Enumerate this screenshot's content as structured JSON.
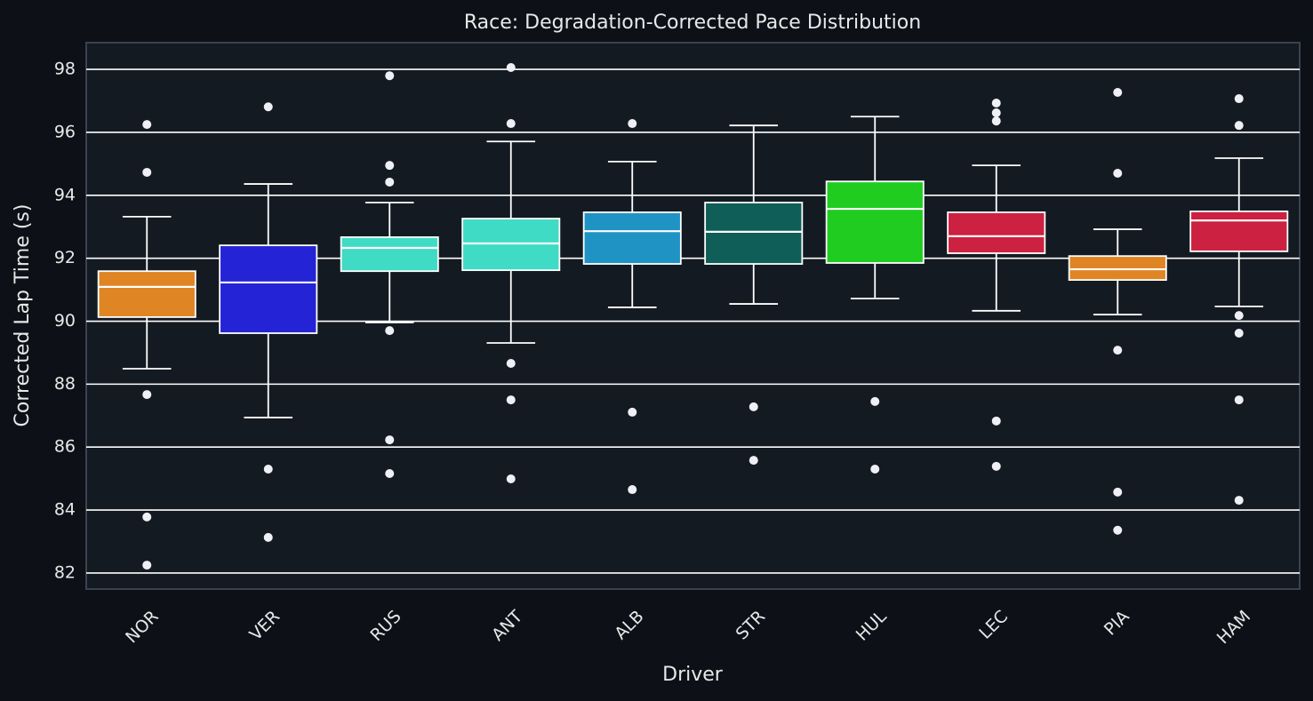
{
  "chart_data": {
    "type": "box",
    "title": "Race: Degradation-Corrected Pace Distribution",
    "x_label": "Driver",
    "y_label": "Corrected Lap Time (s)",
    "ylim": [
      81.49,
      98.85
    ],
    "yticks": [
      82,
      84,
      86,
      88,
      90,
      92,
      94,
      96,
      98
    ],
    "grid": true,
    "boxes": [
      {
        "name": "NOR",
        "color": "#e08524",
        "low": 88.49,
        "q1": 90.13,
        "median": 91.09,
        "q3": 91.59,
        "high": 93.32,
        "outliers": [
          96.25,
          94.73,
          87.67,
          83.78,
          82.25
        ]
      },
      {
        "name": "VER",
        "color": "#2424d6",
        "low": 86.94,
        "q1": 89.62,
        "median": 91.23,
        "q3": 92.41,
        "high": 94.36,
        "outliers": [
          96.81,
          85.3,
          83.13
        ]
      },
      {
        "name": "RUS",
        "color": "#40dbc4",
        "low": 89.96,
        "q1": 91.59,
        "median": 92.33,
        "q3": 92.67,
        "high": 93.77,
        "outliers": [
          97.8,
          94.95,
          94.42,
          89.7,
          86.23,
          85.16
        ]
      },
      {
        "name": "ANT",
        "color": "#40dbc4",
        "low": 89.31,
        "q1": 91.62,
        "median": 92.47,
        "q3": 93.26,
        "high": 95.71,
        "outliers": [
          98.06,
          96.28,
          88.66,
          87.5,
          84.99
        ]
      },
      {
        "name": "ALB",
        "color": "#1f94c4",
        "low": 90.44,
        "q1": 91.82,
        "median": 92.86,
        "q3": 93.46,
        "high": 95.07,
        "outliers": [
          96.28,
          87.11,
          84.65
        ]
      },
      {
        "name": "STR",
        "color": "#0f5e57",
        "low": 90.55,
        "q1": 91.82,
        "median": 92.84,
        "q3": 93.77,
        "high": 96.22,
        "outliers": [
          87.28,
          85.58
        ]
      },
      {
        "name": "HUL",
        "color": "#21cc21",
        "low": 90.72,
        "q1": 91.85,
        "median": 93.57,
        "q3": 94.44,
        "high": 96.5,
        "outliers": [
          87.45,
          85.3
        ]
      },
      {
        "name": "LEC",
        "color": "#cc2140",
        "low": 90.33,
        "q1": 92.16,
        "median": 92.7,
        "q3": 93.46,
        "high": 94.95,
        "outliers": [
          96.93,
          96.62,
          96.36,
          86.83,
          85.39
        ]
      },
      {
        "name": "PIA",
        "color": "#e08524",
        "low": 90.21,
        "q1": 91.31,
        "median": 91.65,
        "q3": 92.07,
        "high": 92.92,
        "outliers": [
          97.27,
          94.7,
          89.08,
          84.57,
          83.36
        ]
      },
      {
        "name": "HAM",
        "color": "#cc2140",
        "low": 90.47,
        "q1": 92.22,
        "median": 93.2,
        "q3": 93.49,
        "high": 95.18,
        "outliers": [
          97.07,
          96.22,
          90.18,
          89.62,
          87.5,
          84.31
        ]
      }
    ]
  }
}
